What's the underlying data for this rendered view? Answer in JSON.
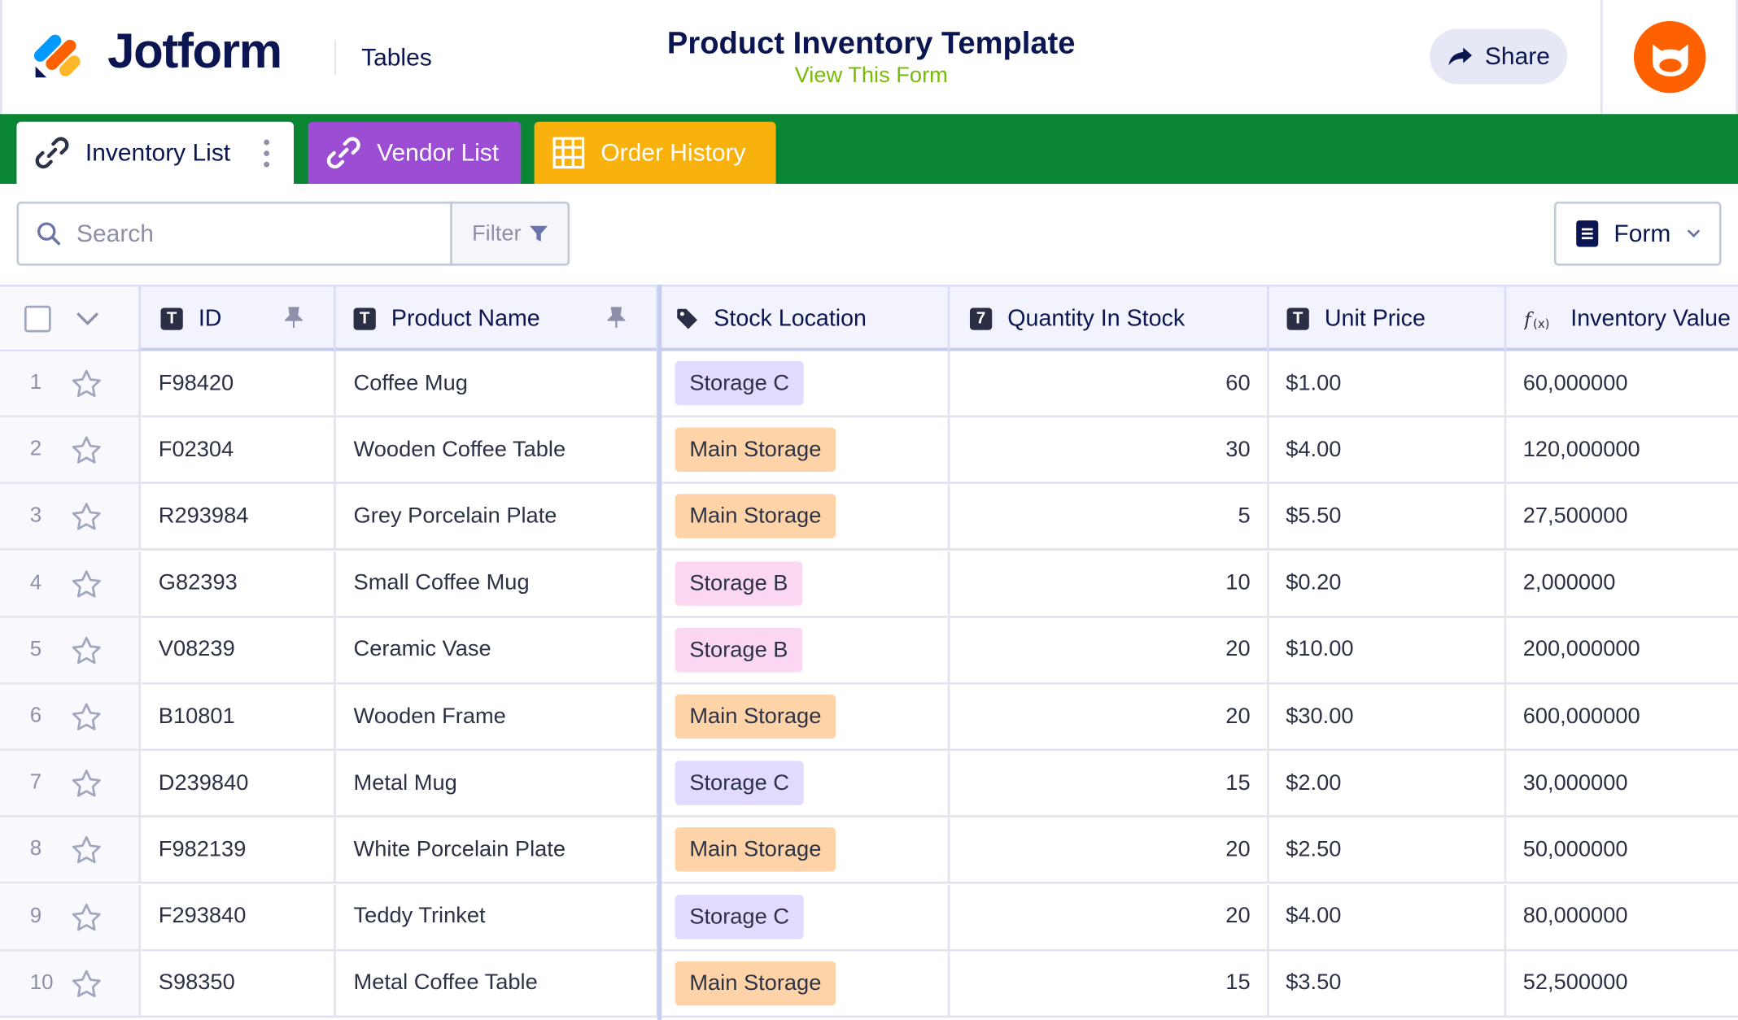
{
  "header": {
    "brand": "Jotform",
    "section": "Tables",
    "title": "Product Inventory Template",
    "subtitle": "View This Form",
    "share_label": "Share"
  },
  "tabs": [
    {
      "label": "Inventory List",
      "icon": "link-icon",
      "color": "#ffffff"
    },
    {
      "label": "Vendor List",
      "icon": "link-icon",
      "color": "#9c4dd3"
    },
    {
      "label": "Order History",
      "icon": "grid-icon",
      "color": "#f9b20d"
    }
  ],
  "toolbar": {
    "search_placeholder": "Search",
    "filter_label": "Filter",
    "form_label": "Form"
  },
  "columns": [
    {
      "key": "id",
      "label": "ID",
      "icon": "text-type-icon"
    },
    {
      "key": "name",
      "label": "Product Name",
      "icon": "text-type-icon"
    },
    {
      "key": "location",
      "label": "Stock Location",
      "icon": "tag-icon"
    },
    {
      "key": "qty",
      "label": "Quantity In Stock",
      "icon": "number-type-icon"
    },
    {
      "key": "price",
      "label": "Unit Price",
      "icon": "text-type-icon"
    },
    {
      "key": "value",
      "label": "Inventory Value",
      "icon": "formula-icon"
    }
  ],
  "location_colors": {
    "Storage C": "#e3dbff",
    "Main Storage": "#ffd3a8",
    "Storage B": "#fbd7f2"
  },
  "rows": [
    {
      "n": "1",
      "id": "F98420",
      "name": "Coffee Mug",
      "location": "Storage C",
      "qty": "60",
      "price": "$1.00",
      "value": "60,000000"
    },
    {
      "n": "2",
      "id": "F02304",
      "name": "Wooden Coffee Table",
      "location": "Main Storage",
      "qty": "30",
      "price": "$4.00",
      "value": "120,000000"
    },
    {
      "n": "3",
      "id": "R293984",
      "name": "Grey Porcelain Plate",
      "location": "Main Storage",
      "qty": "5",
      "price": "$5.50",
      "value": "27,500000"
    },
    {
      "n": "4",
      "id": "G82393",
      "name": "Small Coffee Mug",
      "location": "Storage B",
      "qty": "10",
      "price": "$0.20",
      "value": "2,000000"
    },
    {
      "n": "5",
      "id": "V08239",
      "name": "Ceramic Vase",
      "location": "Storage B",
      "qty": "20",
      "price": "$10.00",
      "value": "200,000000"
    },
    {
      "n": "6",
      "id": "B10801",
      "name": "Wooden Frame",
      "location": "Main Storage",
      "qty": "20",
      "price": "$30.00",
      "value": "600,000000"
    },
    {
      "n": "7",
      "id": "D239840",
      "name": "Metal Mug",
      "location": "Storage C",
      "qty": "15",
      "price": "$2.00",
      "value": "30,000000"
    },
    {
      "n": "8",
      "id": "F982139",
      "name": "White Porcelain Plate",
      "location": "Main Storage",
      "qty": "20",
      "price": "$2.50",
      "value": "50,000000"
    },
    {
      "n": "9",
      "id": "F293840",
      "name": "Teddy Trinket",
      "location": "Storage C",
      "qty": "20",
      "price": "$4.00",
      "value": "80,000000"
    },
    {
      "n": "10",
      "id": "S98350",
      "name": "Metal Coffee Table",
      "location": "Main Storage",
      "qty": "15",
      "price": "$3.50",
      "value": "52,500000"
    }
  ]
}
